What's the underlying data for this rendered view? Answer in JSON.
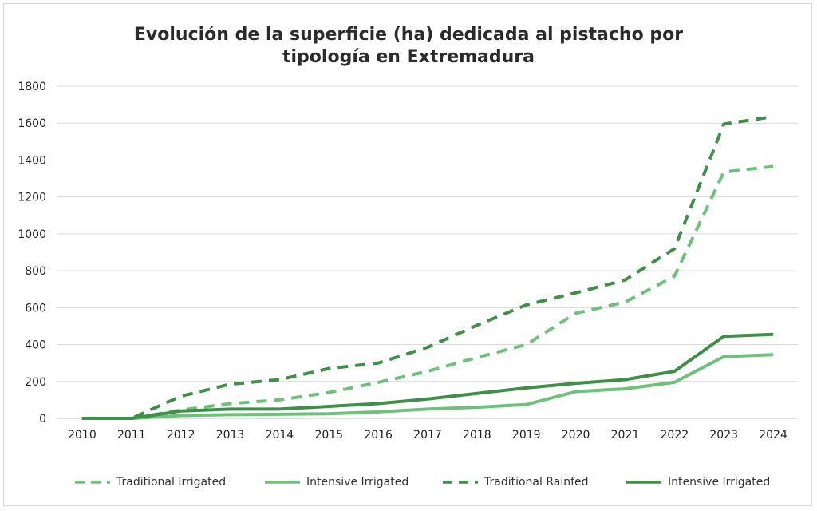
{
  "chart_data": {
    "type": "line",
    "title_lines": [
      "Evolución de la superficie (ha) dedicada al pistacho por",
      "tipología en Extremadura"
    ],
    "x": [
      "2010",
      "2011",
      "2012",
      "2013",
      "2014",
      "2015",
      "2016",
      "2017",
      "2018",
      "2019",
      "2020",
      "2021",
      "2022",
      "2023",
      "2024"
    ],
    "ylim": [
      0,
      1800
    ],
    "yticks": [
      0,
      200,
      400,
      600,
      800,
      1000,
      1200,
      1400,
      1600,
      1800
    ],
    "grid": true,
    "legend_position": "bottom",
    "series": [
      {
        "name": "Traditional Irrigated",
        "color": "#6ec17a",
        "dashed": true,
        "values": [
          0,
          0,
          45,
          80,
          100,
          140,
          195,
          255,
          330,
          400,
          570,
          630,
          770,
          1335,
          1365
        ]
      },
      {
        "name": "Intensive Irrigated",
        "color": "#6ec17a",
        "dashed": false,
        "values": [
          0,
          0,
          15,
          20,
          22,
          25,
          35,
          50,
          60,
          75,
          145,
          160,
          195,
          335,
          345
        ]
      },
      {
        "name": "Traditional Rainfed",
        "color": "#3f8f48",
        "dashed": true,
        "values": [
          0,
          0,
          120,
          185,
          210,
          270,
          300,
          385,
          505,
          615,
          680,
          750,
          920,
          1595,
          1635
        ]
      },
      {
        "name": "Intensive Irrigated",
        "color": "#3f8f48",
        "dashed": false,
        "values": [
          0,
          0,
          40,
          50,
          50,
          65,
          80,
          105,
          135,
          165,
          190,
          210,
          255,
          445,
          455
        ]
      }
    ]
  }
}
